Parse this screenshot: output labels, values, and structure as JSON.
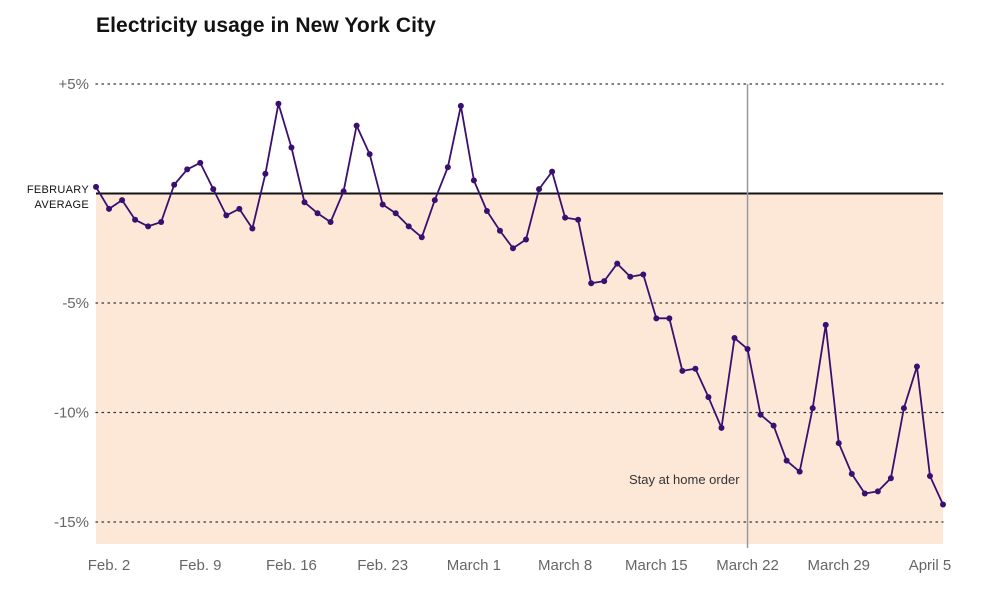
{
  "title": "Electricity usage in New York City",
  "colors": {
    "line": "#3b0f70",
    "fill": "#fde8d8",
    "grid": "#333333",
    "marker": "#999999",
    "baseline": "#121212"
  },
  "chart_data": {
    "type": "line",
    "title": "Electricity usage in New York City",
    "xlabel": "",
    "ylabel": "",
    "x_start": "Feb. 1",
    "x_end": "April 6",
    "ylim": [
      -16,
      5
    ],
    "y_ticks": [
      {
        "value": 5,
        "label": "+5%"
      },
      {
        "value": -5,
        "label": "-5%"
      },
      {
        "value": -10,
        "label": "-10%"
      },
      {
        "value": -15,
        "label": "-15%"
      }
    ],
    "baseline": {
      "value": 0,
      "label_lines": [
        "FEBRUARY",
        "AVERAGE"
      ]
    },
    "x_ticks": [
      {
        "index": 1,
        "label": "Feb. 2"
      },
      {
        "index": 8,
        "label": "Feb. 9"
      },
      {
        "index": 15,
        "label": "Feb. 16"
      },
      {
        "index": 22,
        "label": "Feb. 23"
      },
      {
        "index": 29,
        "label": "March 1"
      },
      {
        "index": 36,
        "label": "March 8"
      },
      {
        "index": 43,
        "label": "March 15"
      },
      {
        "index": 50,
        "label": "March 22"
      },
      {
        "index": 57,
        "label": "March 29"
      },
      {
        "index": 64,
        "label": "April 5"
      }
    ],
    "annotation": {
      "index": 50,
      "label": "Stay at home order"
    },
    "values": [
      0.3,
      -0.7,
      -0.3,
      -1.2,
      -1.5,
      -1.3,
      0.4,
      1.1,
      1.4,
      0.2,
      -1.0,
      -0.7,
      -1.6,
      0.9,
      4.1,
      2.1,
      -0.4,
      -0.9,
      -1.3,
      0.1,
      3.1,
      1.8,
      -0.5,
      -0.9,
      -1.5,
      -2.0,
      -0.3,
      1.2,
      4.0,
      0.6,
      -0.8,
      -1.7,
      -2.5,
      -2.1,
      0.2,
      1.0,
      -1.1,
      -1.2,
      -4.1,
      -4.0,
      -3.2,
      -3.8,
      -3.7,
      -5.7,
      -5.7,
      -8.1,
      -8.0,
      -9.3,
      -10.7,
      -6.6,
      -7.1,
      -10.1,
      -10.6,
      -12.2,
      -12.7,
      -9.8,
      -6.0,
      -11.4,
      -12.8,
      -13.7,
      -13.6,
      -13.0,
      -9.8,
      -7.9,
      -12.9,
      -14.2
    ]
  }
}
